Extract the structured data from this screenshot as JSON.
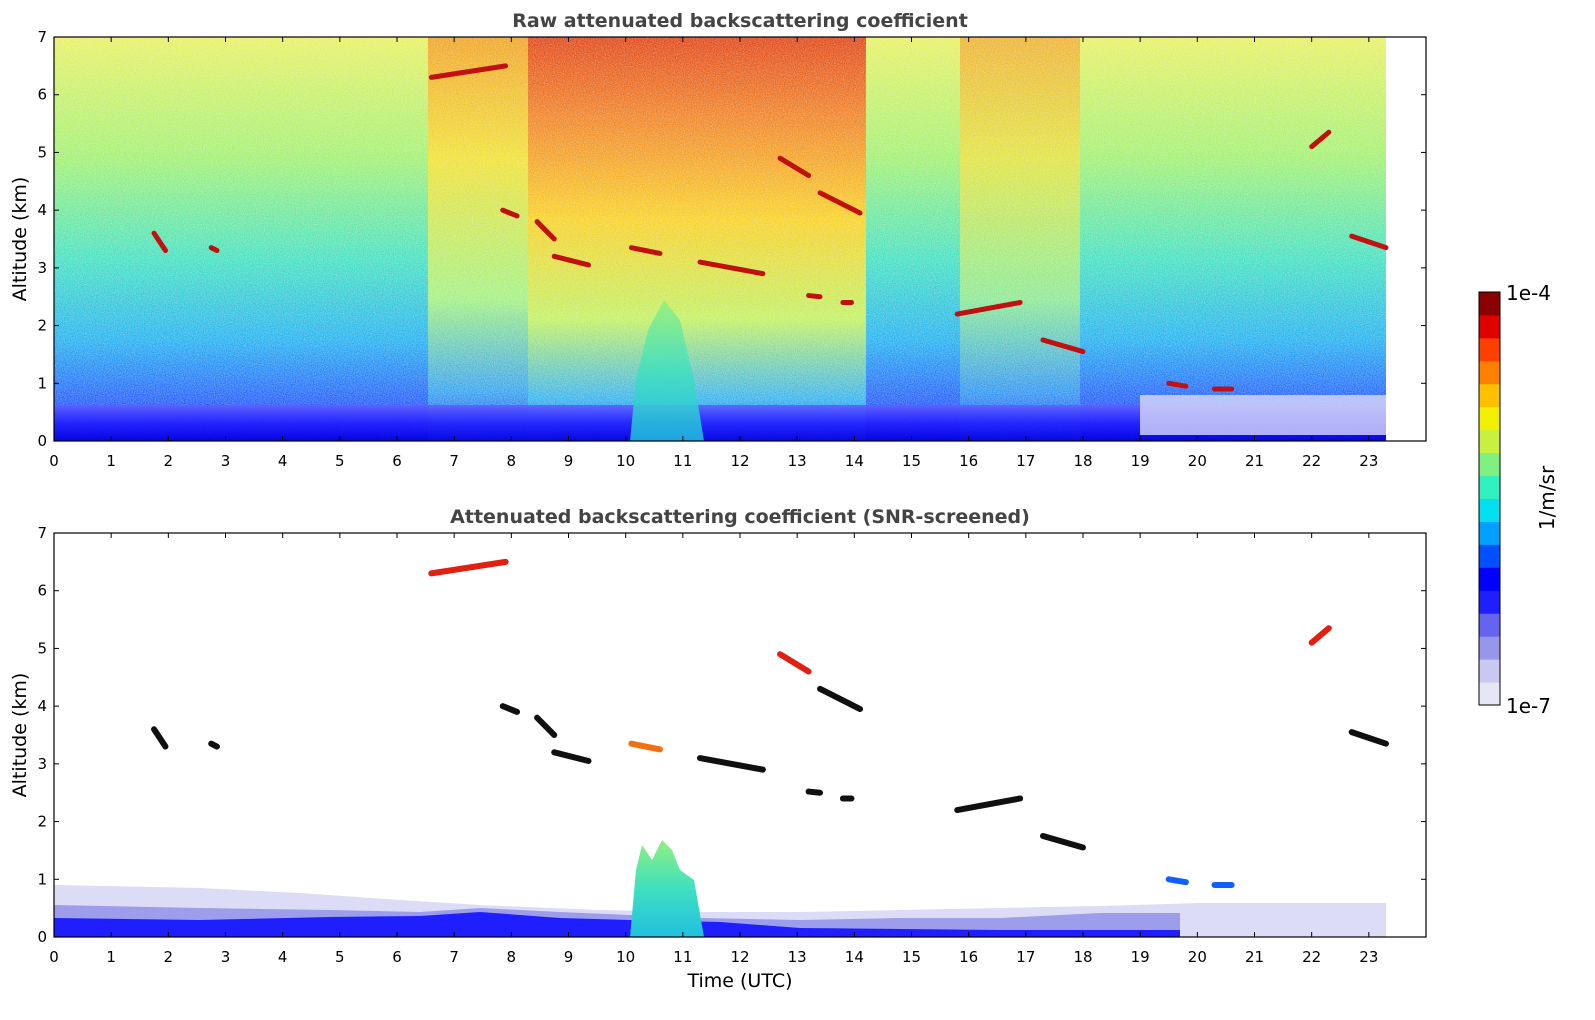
{
  "chart_data": [
    {
      "type": "heatmap",
      "title": "Raw attenuated backscattering coefficient",
      "xlabel": "",
      "ylabel": "Altitude (km)",
      "xlim": [
        0,
        24
      ],
      "ylim": [
        0,
        7
      ],
      "data_extent_x": [
        0,
        23.3
      ],
      "x_ticks": [
        0,
        1,
        2,
        3,
        4,
        5,
        6,
        7,
        8,
        9,
        10,
        11,
        12,
        13,
        14,
        15,
        16,
        17,
        18,
        19,
        20,
        21,
        22,
        23
      ],
      "y_ticks": [
        0,
        1,
        2,
        3,
        4,
        5,
        6,
        7
      ],
      "colorscale": "jet",
      "cloud_layers": [
        {
          "x_start": 1.75,
          "x_end": 1.95,
          "alt_start": 3.6,
          "alt_end": 3.3
        },
        {
          "x_start": 2.75,
          "x_end": 2.85,
          "alt_start": 3.35,
          "alt_end": 3.3
        },
        {
          "x_start": 6.6,
          "x_end": 7.9,
          "alt_start": 6.3,
          "alt_end": 6.5
        },
        {
          "x_start": 7.85,
          "x_end": 8.1,
          "alt_start": 4.0,
          "alt_end": 3.9
        },
        {
          "x_start": 8.45,
          "x_end": 8.75,
          "alt_start": 3.8,
          "alt_end": 3.5
        },
        {
          "x_start": 8.75,
          "x_end": 9.35,
          "alt_start": 3.2,
          "alt_end": 3.05
        },
        {
          "x_start": 10.1,
          "x_end": 10.6,
          "alt_start": 3.35,
          "alt_end": 3.25
        },
        {
          "x_start": 11.3,
          "x_end": 12.4,
          "alt_start": 3.1,
          "alt_end": 2.9
        },
        {
          "x_start": 12.7,
          "x_end": 13.2,
          "alt_start": 4.9,
          "alt_end": 4.6
        },
        {
          "x_start": 13.4,
          "x_end": 14.1,
          "alt_start": 4.3,
          "alt_end": 3.95
        },
        {
          "x_start": 13.2,
          "x_end": 13.4,
          "alt_start": 2.52,
          "alt_end": 2.5
        },
        {
          "x_start": 13.8,
          "x_end": 13.95,
          "alt_start": 2.4,
          "alt_end": 2.4
        },
        {
          "x_start": 15.8,
          "x_end": 16.9,
          "alt_start": 2.2,
          "alt_end": 2.4
        },
        {
          "x_start": 17.3,
          "x_end": 18.0,
          "alt_start": 1.75,
          "alt_end": 1.55
        },
        {
          "x_start": 19.5,
          "x_end": 19.8,
          "alt_start": 1.0,
          "alt_end": 0.95
        },
        {
          "x_start": 20.3,
          "x_end": 20.6,
          "alt_start": 0.9,
          "alt_end": 0.9
        },
        {
          "x_start": 22.0,
          "x_end": 22.3,
          "alt_start": 5.1,
          "alt_end": 5.35
        },
        {
          "x_start": 22.7,
          "x_end": 23.3,
          "alt_start": 3.55,
          "alt_end": 3.35
        }
      ]
    },
    {
      "type": "heatmap",
      "title": "Attenuated backscattering coefficient (SNR-screened)",
      "xlabel": "Time (UTC)",
      "ylabel": "Altitude (km)",
      "xlim": [
        0,
        24
      ],
      "ylim": [
        0,
        7
      ],
      "data_extent_x": [
        0,
        23.3
      ],
      "x_ticks": [
        0,
        1,
        2,
        3,
        4,
        5,
        6,
        7,
        8,
        9,
        10,
        11,
        12,
        13,
        14,
        15,
        16,
        17,
        18,
        19,
        20,
        21,
        22,
        23
      ],
      "y_ticks": [
        0,
        1,
        2,
        3,
        4,
        5,
        6,
        7
      ],
      "colorscale": "jet"
    }
  ],
  "colorbar": {
    "label": "1/m/sr",
    "max_label": "1e-4",
    "min_label": "1e-7",
    "colors": [
      "#e6e6f5",
      "#c8c8f0",
      "#9696eb",
      "#6464f0",
      "#1e1eff",
      "#0000ff",
      "#0050ff",
      "#00a0ff",
      "#00e0f0",
      "#30f0c0",
      "#80f080",
      "#c8f040",
      "#f0f000",
      "#ffc000",
      "#ff8000",
      "#ff4000",
      "#e00000",
      "#8b0000"
    ]
  }
}
